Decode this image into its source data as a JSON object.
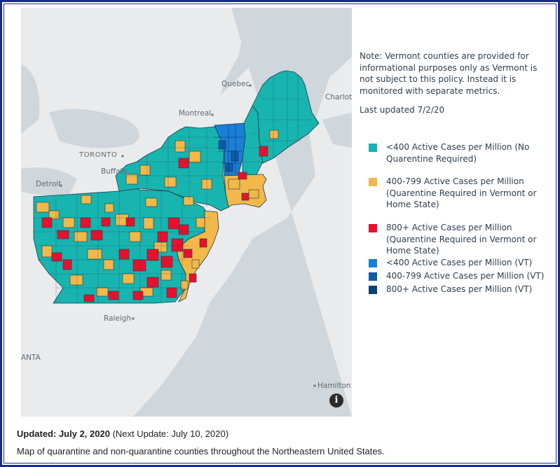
{
  "map": {
    "cities": {
      "quebec": "Quebec",
      "charlottetown": "Charlot",
      "montreal": "Montreal",
      "toronto": "TORONTO",
      "buffalo": "Buffalo",
      "detroit": "Detroit",
      "raleigh": "Raleigh",
      "atlanta": "ANTA",
      "hamilton": "Hamilton"
    },
    "info_icon": "i"
  },
  "note": {
    "text": "Note: Vermont counties are provided for informational purposes only as Vermont is not subject to this policy. Instead it is monitored with separate metrics.",
    "last_updated": "Last updated 7/2/20"
  },
  "legend": {
    "items": [
      {
        "label": "<400 Active Cases per Million (No Quarentine Required)",
        "color": "#17b4b0"
      },
      {
        "label": "400-799 Active Cases per Million (Quarentine Required in Vermont or Home State)",
        "color": "#f3b84a"
      },
      {
        "label": "800+ Active Cases per Million (Quarentine Required in Vermont or Home State)",
        "color": "#e8112d"
      },
      {
        "label": "<400 Active Cases per Million (VT)",
        "color": "#1a7fd6"
      },
      {
        "label": "400-799 Active Cases per Million (VT)",
        "color": "#0f5aa8"
      },
      {
        "label": "800+ Active Cases per Million (VT)",
        "color": "#0b4178"
      }
    ]
  },
  "caption": {
    "updated_label": "Updated: July 2, 2020",
    "next_update": " (Next Update: July 10, 2020)",
    "description": "Map of quarantine and non-quarantine counties throughout the Northeastern United States."
  }
}
